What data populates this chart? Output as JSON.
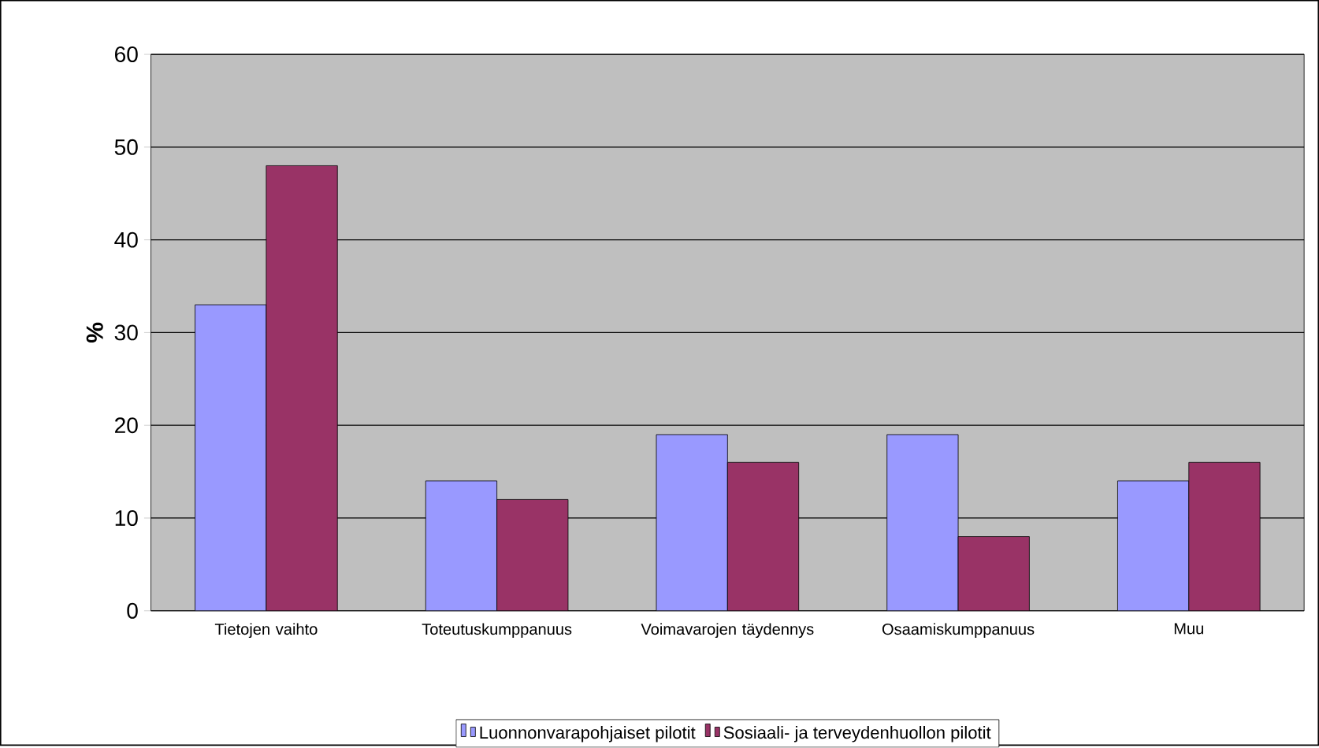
{
  "chart_data": {
    "type": "bar",
    "ylabel": "%",
    "categories": [
      "Tietojen vaihto",
      "Toteutuskumppanuus",
      "Voimavarojen täydennys",
      "Osaamiskumppanuus",
      "Muu"
    ],
    "series": [
      {
        "name": "Luonnonvarapohjaiset pilotit",
        "color": "#9999ff",
        "values": [
          33,
          14,
          19,
          19,
          14
        ]
      },
      {
        "name": "Sosiaali- ja terveydenhuollon pilotit",
        "color": "#993366",
        "values": [
          48,
          12,
          16,
          8,
          16
        ]
      }
    ],
    "ylim": [
      0,
      60
    ],
    "yticks": [
      0,
      10,
      20,
      30,
      40,
      50,
      60
    ],
    "grid": "y",
    "legend": "bottom"
  }
}
